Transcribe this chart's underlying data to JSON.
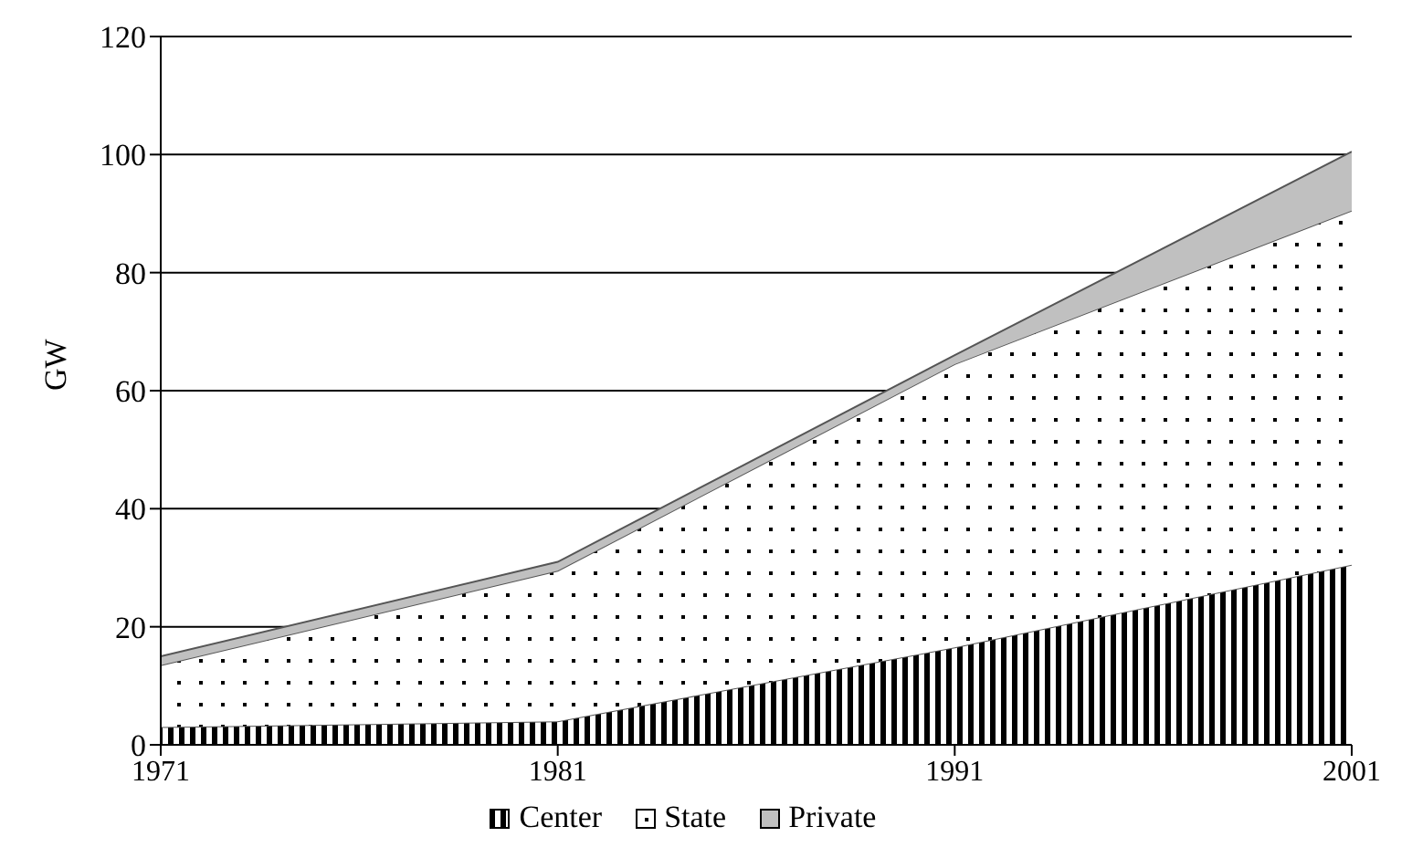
{
  "chart_data": {
    "type": "area",
    "stacked": true,
    "ylabel": "GW",
    "x": [
      1971,
      1981,
      1991,
      2001
    ],
    "series": [
      {
        "name": "Center",
        "color": "#000000",
        "values": [
          3,
          4,
          16.5,
          30.5
        ]
      },
      {
        "name": "State",
        "color": "#ffffff",
        "values": [
          10.5,
          25.5,
          48,
          60
        ]
      },
      {
        "name": "Private",
        "color": "#c0c0c0",
        "values": [
          1.5,
          1.5,
          1.5,
          10
        ]
      }
    ],
    "xlim": [
      1971,
      2001
    ],
    "xticks": [
      1971,
      1981,
      1991,
      2001
    ],
    "ylim": [
      0,
      120
    ],
    "yticks": [
      0,
      20,
      40,
      60,
      80,
      100,
      120
    ],
    "grid": "y",
    "legend": "bottom"
  }
}
